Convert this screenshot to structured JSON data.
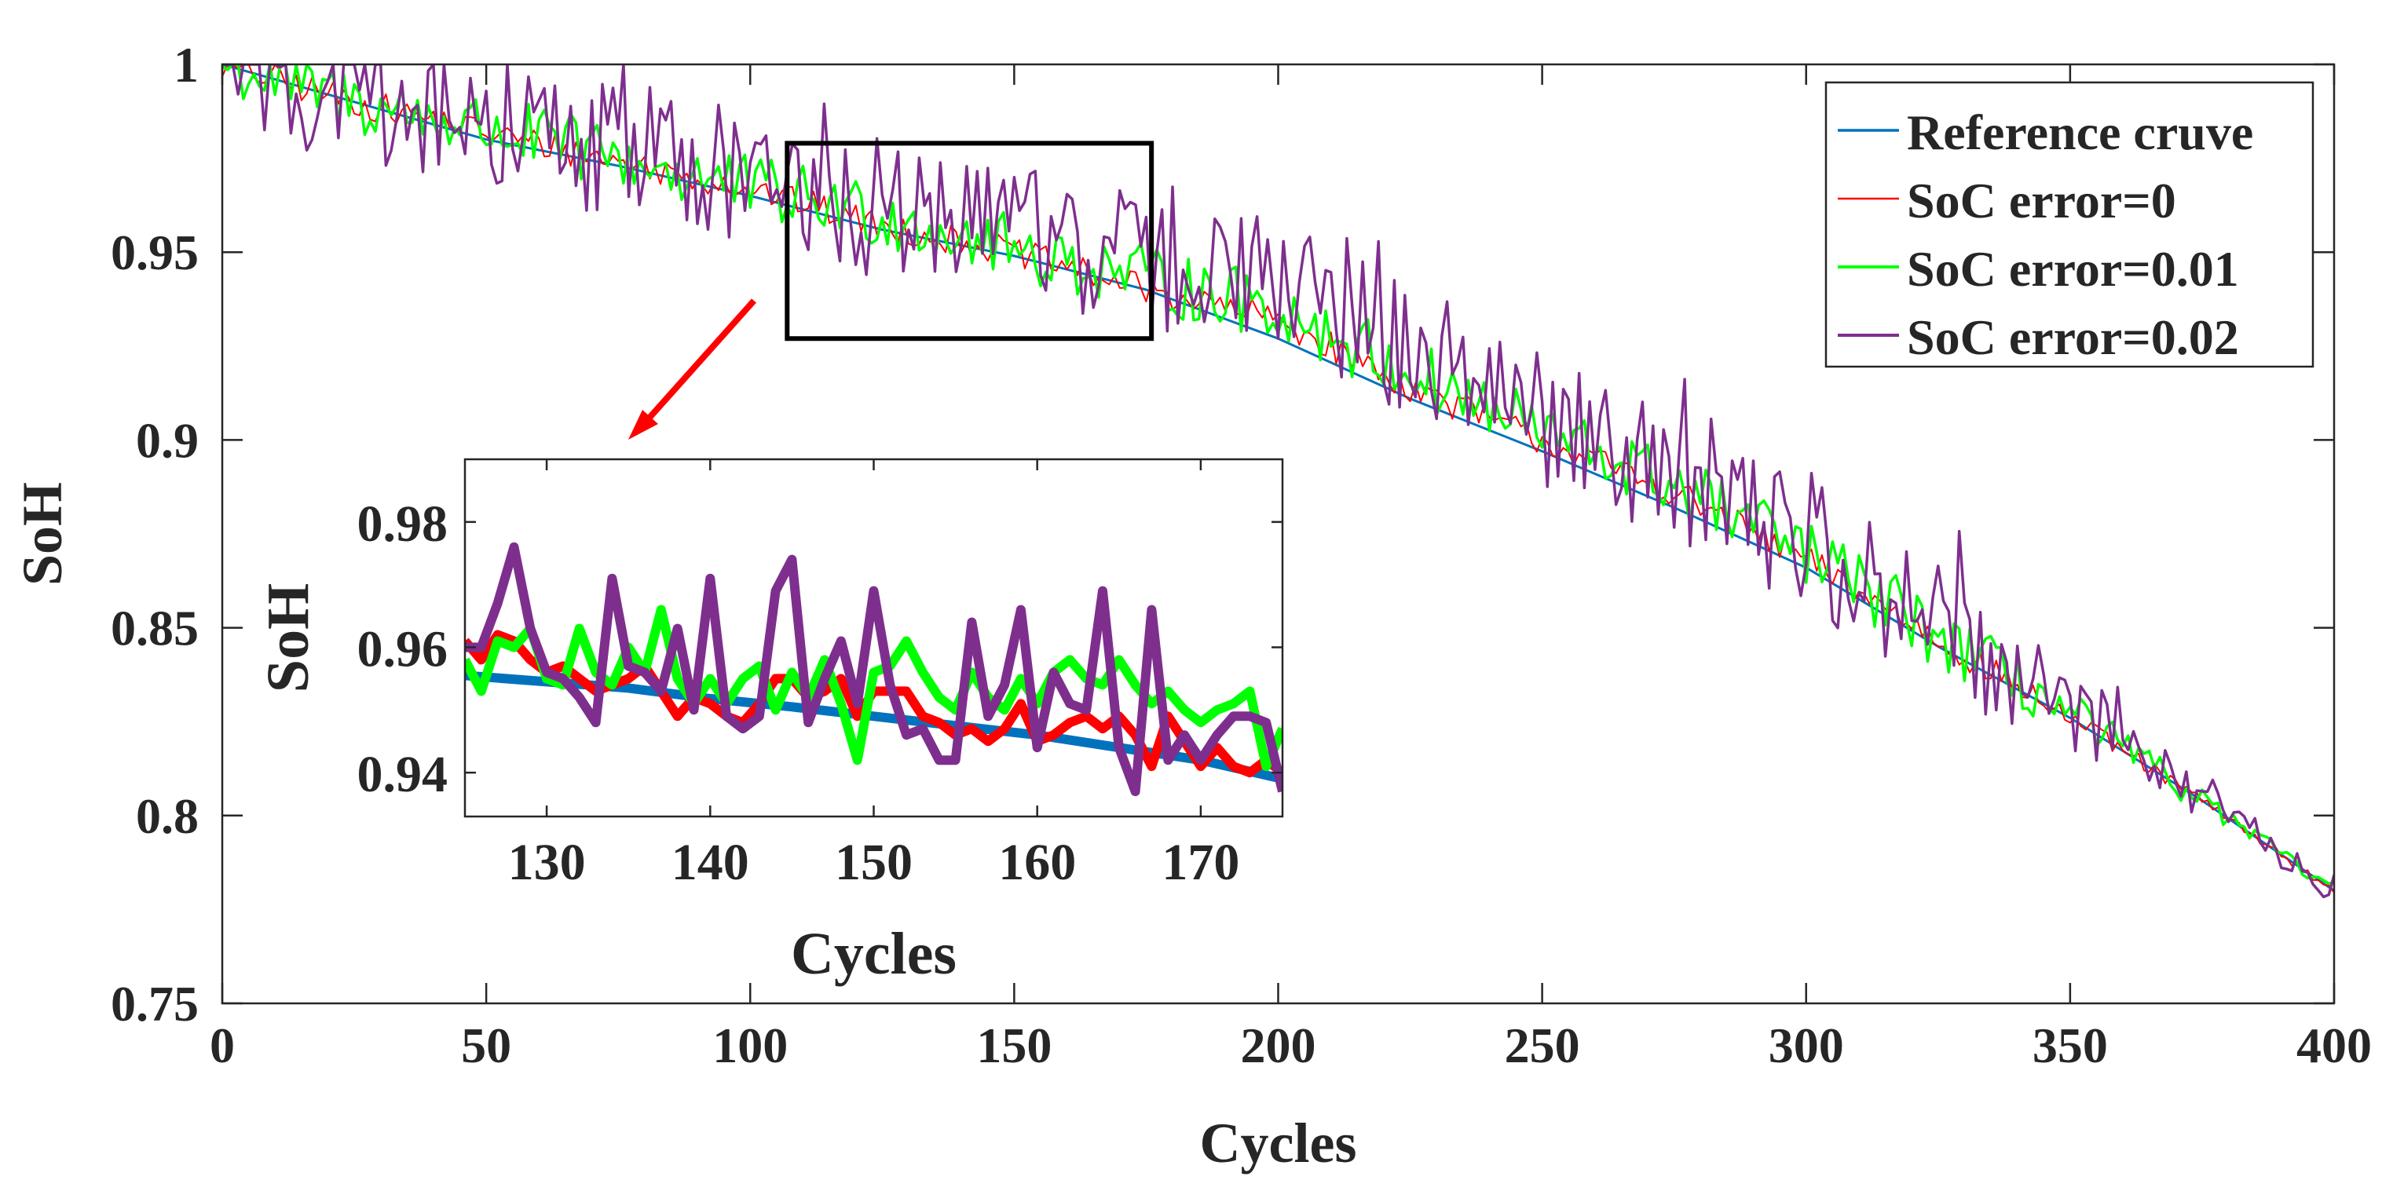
{
  "chart_data": [
    {
      "id": "main",
      "type": "line",
      "title": "",
      "xlabel": "Cycles",
      "ylabel": "SoH",
      "xlim": [
        0,
        400
      ],
      "ylim": [
        0.75,
        1.0
      ],
      "xticks": [
        0,
        50,
        100,
        150,
        200,
        250,
        300,
        350,
        400
      ],
      "xtick_labels": [
        "0",
        "50",
        "100",
        "150",
        "200",
        "250",
        "300",
        "350",
        "400"
      ],
      "yticks": [
        0.75,
        0.8,
        0.85,
        0.9,
        0.95,
        1.0
      ],
      "ytick_labels": [
        "0.75",
        "0.8",
        "0.85",
        "0.9",
        "0.95",
        "1"
      ],
      "grid": false,
      "legend_position": "top-right",
      "series": [
        {
          "name": "Reference cruve",
          "color": "#0072BD",
          "x": [
            0,
            25,
            50,
            75,
            100,
            125,
            150,
            175,
            200,
            225,
            250,
            275,
            300,
            325,
            350,
            375,
            400
          ],
          "y": [
            1.0,
            0.99,
            0.98,
            0.973,
            0.965,
            0.956,
            0.949,
            0.94,
            0.927,
            0.911,
            0.897,
            0.882,
            0.866,
            0.845,
            0.826,
            0.804,
            0.78
          ]
        },
        {
          "name": "SoC error=0",
          "color": "#FF0000",
          "x": [
            0,
            25,
            50,
            75,
            100,
            125,
            150,
            175,
            200,
            225,
            250,
            275,
            300,
            325,
            350,
            375,
            400
          ],
          "y": [
            1.0,
            0.99,
            0.982,
            0.974,
            0.967,
            0.957,
            0.95,
            0.94,
            0.932,
            0.914,
            0.9,
            0.886,
            0.868,
            0.847,
            0.826,
            0.804,
            0.78
          ]
        },
        {
          "name": "SoC error=0.01",
          "color": "#00FF00",
          "x": [
            0,
            25,
            50,
            75,
            100,
            125,
            150,
            175,
            200,
            225,
            250,
            275,
            300,
            325,
            350,
            375,
            400
          ],
          "y": [
            1.0,
            0.99,
            0.983,
            0.975,
            0.967,
            0.96,
            0.951,
            0.943,
            0.935,
            0.918,
            0.902,
            0.888,
            0.87,
            0.848,
            0.827,
            0.804,
            0.78
          ]
        },
        {
          "name": "SoC error=0.02",
          "color": "#7E2F8E",
          "x": [
            0,
            25,
            50,
            75,
            100,
            125,
            150,
            175,
            200,
            225,
            250,
            275,
            300,
            325,
            350,
            375,
            400
          ],
          "y": [
            1.0,
            0.992,
            0.985,
            0.977,
            0.97,
            0.962,
            0.955,
            0.947,
            0.94,
            0.925,
            0.905,
            0.89,
            0.872,
            0.85,
            0.828,
            0.805,
            0.78
          ]
        }
      ],
      "noise_amplitude": [
        0,
        0.004,
        0.009,
        0.018
      ],
      "highlight_box": {
        "x_range": [
          107,
          176
        ],
        "y_range": [
          0.927,
          0.979
        ]
      }
    },
    {
      "id": "inset",
      "type": "line",
      "title": "",
      "xlabel": "Cycles",
      "ylabel": "SoH",
      "xlim": [
        125,
        175
      ],
      "ylim": [
        0.933,
        0.99
      ],
      "xticks": [
        130,
        140,
        150,
        160,
        170
      ],
      "xtick_labels": [
        "130",
        "140",
        "150",
        "160",
        "170"
      ],
      "yticks": [
        0.94,
        0.96,
        0.98
      ],
      "ytick_labels": [
        "0.94",
        "0.96",
        "0.98"
      ],
      "grid": false,
      "series": [
        {
          "name": "Reference cruve",
          "color": "#0072BD",
          "x": [
            125,
            130,
            135,
            140,
            145,
            150,
            155,
            160,
            165,
            170,
            175
          ],
          "y": [
            0.9555,
            0.9545,
            0.9535,
            0.9518,
            0.9505,
            0.949,
            0.9475,
            0.946,
            0.944,
            0.942,
            0.939
          ]
        },
        {
          "name": "SoC error=0",
          "color": "#FF0000",
          "x": [
            125,
            126,
            127,
            128,
            129,
            130,
            131,
            132,
            133,
            134,
            135,
            136,
            137,
            138,
            139,
            140,
            141,
            142,
            143,
            144,
            145,
            146,
            147,
            148,
            149,
            150,
            151,
            152,
            153,
            154,
            155,
            156,
            157,
            158,
            159,
            160,
            161,
            162,
            163,
            164,
            165,
            166,
            167,
            168,
            169,
            170,
            171,
            172,
            173,
            174,
            175
          ],
          "y": [
            0.961,
            0.958,
            0.962,
            0.961,
            0.958,
            0.956,
            0.957,
            0.955,
            0.953,
            0.954,
            0.955,
            0.957,
            0.953,
            0.949,
            0.952,
            0.951,
            0.949,
            0.948,
            0.951,
            0.955,
            0.955,
            0.952,
            0.953,
            0.955,
            0.949,
            0.953,
            0.953,
            0.953,
            0.949,
            0.948,
            0.946,
            0.947,
            0.945,
            0.947,
            0.951,
            0.945,
            0.946,
            0.948,
            0.949,
            0.947,
            0.949,
            0.946,
            0.941,
            0.949,
            0.945,
            0.941,
            0.944,
            0.941,
            0.94,
            0.942,
            0.94
          ]
        },
        {
          "name": "SoC error=0.01",
          "color": "#00FF00",
          "x": [
            125,
            126,
            127,
            128,
            129,
            130,
            131,
            132,
            133,
            134,
            135,
            136,
            137,
            138,
            139,
            140,
            141,
            142,
            143,
            144,
            145,
            146,
            147,
            148,
            149,
            150,
            151,
            152,
            153,
            154,
            155,
            156,
            157,
            158,
            159,
            160,
            161,
            162,
            163,
            164,
            165,
            166,
            167,
            168,
            169,
            170,
            171,
            172,
            173,
            174,
            175
          ],
          "y": [
            0.958,
            0.953,
            0.961,
            0.96,
            0.963,
            0.955,
            0.954,
            0.963,
            0.956,
            0.954,
            0.96,
            0.956,
            0.966,
            0.955,
            0.951,
            0.955,
            0.951,
            0.955,
            0.957,
            0.95,
            0.956,
            0.952,
            0.958,
            0.951,
            0.942,
            0.956,
            0.957,
            0.961,
            0.956,
            0.952,
            0.95,
            0.956,
            0.952,
            0.95,
            0.955,
            0.951,
            0.956,
            0.958,
            0.955,
            0.954,
            0.958,
            0.954,
            0.951,
            0.953,
            0.95,
            0.948,
            0.95,
            0.951,
            0.953,
            0.941,
            0.947
          ]
        },
        {
          "name": "SoC error=0.02",
          "color": "#7E2F8E",
          "x": [
            125,
            126,
            127,
            128,
            129,
            130,
            131,
            132,
            133,
            134,
            135,
            136,
            137,
            138,
            139,
            140,
            141,
            142,
            143,
            144,
            145,
            146,
            147,
            148,
            149,
            150,
            151,
            152,
            153,
            154,
            155,
            156,
            157,
            158,
            159,
            160,
            161,
            162,
            163,
            164,
            165,
            166,
            167,
            168,
            169,
            170,
            171,
            172,
            173,
            174,
            175
          ],
          "y": [
            0.96,
            0.96,
            0.967,
            0.976,
            0.963,
            0.956,
            0.955,
            0.952,
            0.948,
            0.971,
            0.957,
            0.956,
            0.953,
            0.963,
            0.95,
            0.971,
            0.949,
            0.947,
            0.949,
            0.969,
            0.974,
            0.948,
            0.955,
            0.961,
            0.951,
            0.969,
            0.954,
            0.946,
            0.947,
            0.942,
            0.942,
            0.964,
            0.949,
            0.954,
            0.966,
            0.944,
            0.956,
            0.951,
            0.95,
            0.969,
            0.944,
            0.937,
            0.966,
            0.942,
            0.946,
            0.942,
            0.946,
            0.949,
            0.949,
            0.948,
            0.937
          ]
        }
      ]
    }
  ]
}
